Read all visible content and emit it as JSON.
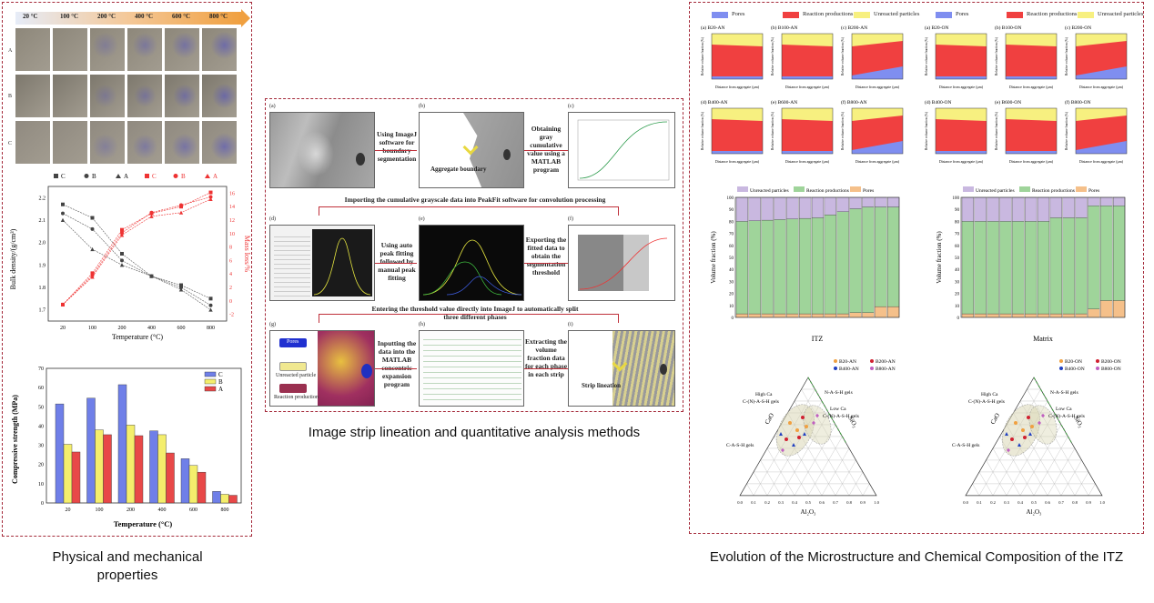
{
  "captions": {
    "left": "Physical and mechanical properties",
    "middle": "Image strip lineation and quantitative analysis methods",
    "right": "Evolution of the Microstructure and Chemical Composition of the ITZ"
  },
  "left_panel": {
    "temperature_bar": [
      "20 °C",
      "100 °C",
      "200 °C",
      "400 °C",
      "600 °C",
      "800 °C"
    ],
    "row_labels": [
      "A",
      "B",
      "C"
    ],
    "density_chart": {
      "legend": [
        "C",
        "B",
        "A",
        "C",
        "B",
        "A"
      ],
      "ylabel_left": "Bulk density/(g/cm³)",
      "ylabel_right": "Mass loss/%",
      "xlabel": "Temperature (°C)",
      "x_ticks": [
        "20",
        "100",
        "200",
        "400",
        "600",
        "800"
      ],
      "y_left_ticks": [
        "1.7",
        "1.8",
        "1.9",
        "2.0",
        "2.1",
        "2.2"
      ],
      "y_right_ticks": [
        "-2",
        "0",
        "2",
        "4",
        "6",
        "8",
        "10",
        "12",
        "14",
        "16"
      ]
    },
    "strength_chart": {
      "legend": [
        "C",
        "B",
        "A"
      ],
      "ylabel": "Compressive strength (MPa)",
      "xlabel": "Temperature (°C)",
      "x_ticks": [
        "20",
        "100",
        "200",
        "400",
        "600",
        "800"
      ],
      "y_ticks": [
        "0",
        "10",
        "20",
        "30",
        "40",
        "50",
        "60",
        "70"
      ]
    }
  },
  "middle_panel": {
    "steps": {
      "s1": "Using ImageJ software for boundary segmentation",
      "s2": "Obtaining gray cumulative value using a MATLAB program",
      "s3": "Importing the cumulative grayscale data into PeakFit software for convolution processing",
      "s4": "Using auto peak fitting followed by manual peak fitting",
      "s5": "Exporting the fitted data to obtain the segmentation threshold",
      "s6": "Entering the threshold value directly into ImageJ to automatically split three different phases",
      "s7": "Inputting the data into the MATLAB concentric expansion program",
      "s8": "Extracting the volume fraction data for each phase in each strip"
    },
    "img_letters": [
      "(a)",
      "(b)",
      "(c)",
      "(d)",
      "(e)",
      "(f)",
      "(g)",
      "(h)",
      "(i)"
    ],
    "aggregate_boundary": "Aggregate boundary",
    "strip_lineation": "Strip lineation",
    "legend_g": [
      "Pores",
      "Unreacted particle",
      "Reaction production"
    ]
  },
  "right_panel": {
    "legend_top": [
      "Pores",
      "Reaction productions",
      "Unreacted particles"
    ],
    "small_an": [
      "(a) B20-AN",
      "(b) B100-AN",
      "(c) B200-AN",
      "(d) B400-AN",
      "(e) B600-AN",
      "(f) B800-AN"
    ],
    "small_on": [
      "(a) B20-ON",
      "(b) B100-ON",
      "(c) B200-ON",
      "(d) B400-ON",
      "(e) B600-ON",
      "(f) B800-ON"
    ],
    "small_xlabel": "Distance from aggregate (μm)",
    "small_ylabel": "Relative volume fraction (%)",
    "bar_legend": [
      "Unreacted particles",
      "Reaction productions",
      "Pores"
    ],
    "bar_ylabel": "Volume fraction (%)",
    "bar_xlabel_itz": "ITZ",
    "bar_xlabel_matrix": "Matrix",
    "bar_y_ticks": [
      "0",
      "10",
      "20",
      "30",
      "40",
      "50",
      "60",
      "70",
      "80",
      "90",
      "100"
    ],
    "ternary_an_legend": [
      "B20-AN",
      "B200-AN",
      "B400-AN",
      "B800-AN"
    ],
    "ternary_on_legend": [
      "B20-ON",
      "B200-ON",
      "B400-ON",
      "B800-ON"
    ],
    "ternary_labels": [
      "High Ca C-(N)-A-S-H gels",
      "N-A-S-H gels",
      "Low Ca C-(N)-A-S-H gels",
      "C-A-S-H gels"
    ],
    "ternary_axes": [
      "CaO",
      "SiO₂",
      "Al₂O₃"
    ]
  },
  "colors": {
    "dashed_border": "#a52a3a",
    "pores": "#7f8ef0",
    "reaction": "#f04040",
    "unreacted": "#f7f080",
    "bar_green": "#9fd49a",
    "bar_purple": "#c9b8e0",
    "bar_orange": "#f5c08a",
    "c_series": "#6f7fe8",
    "b_series": "#f4ee6c",
    "a_series": "#e84848"
  }
}
